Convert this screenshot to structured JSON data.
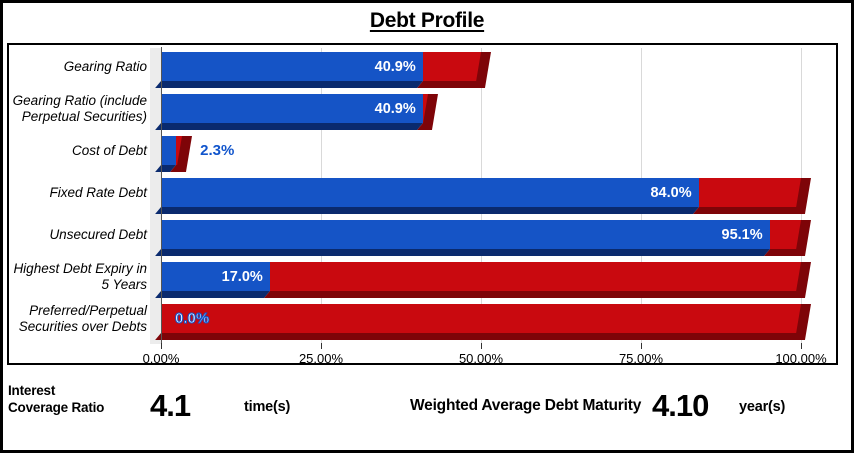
{
  "title": "Debt Profile",
  "colors": {
    "blue": "#1554C6",
    "blue_dark": "#0A2A6E",
    "red": "#C9090F",
    "red_dark": "#7E0408",
    "grid": "#D9D9D9",
    "wall": "#ECECEC",
    "value_blue": "#1155CC"
  },
  "chart_data": {
    "type": "bar",
    "orientation": "horizontal",
    "title": "Debt Profile",
    "xlabel": "",
    "ylabel": "",
    "xlim": [
      0,
      100
    ],
    "grid": true,
    "x_ticks": [
      "0.00%",
      "25.00%",
      "50.00%",
      "75.00%",
      "100.00%"
    ],
    "categories": [
      [
        "Gearing Ratio"
      ],
      [
        "Gearing Ratio (include",
        "Perpetual Securities)"
      ],
      [
        "Cost of Debt"
      ],
      [
        "Fixed Rate Debt"
      ],
      [
        "Unsecured Debt"
      ],
      [
        "Highest Debt Expiry in",
        "5 Years"
      ],
      [
        "Preferred/Perpetual",
        "Securities over Debts"
      ]
    ],
    "series": [
      {
        "name": "value",
        "color": "#1554C6",
        "values": [
          40.9,
          40.9,
          2.3,
          84.0,
          95.1,
          17.0,
          0.0
        ]
      },
      {
        "name": "remainder",
        "color": "#C9090F",
        "values": [
          9.1,
          0.8,
          1.0,
          16.0,
          4.9,
          83.0,
          100.0
        ]
      }
    ],
    "data_labels": [
      "40.9%",
      "40.9%",
      "2.3%",
      "84.0%",
      "95.1%",
      "17.0%",
      "0.0%"
    ],
    "label_styles": [
      "inside",
      "inside",
      "outside",
      "inside",
      "inside",
      "inside",
      "outline"
    ]
  },
  "footer": {
    "icr_label": "Interest\nCoverage Ratio",
    "icr_value": "4.1",
    "icr_unit": "time(s)",
    "wadm_label": "Weighted Average Debt Maturity",
    "wadm_value": "4.10",
    "wadm_unit": "year(s)"
  }
}
